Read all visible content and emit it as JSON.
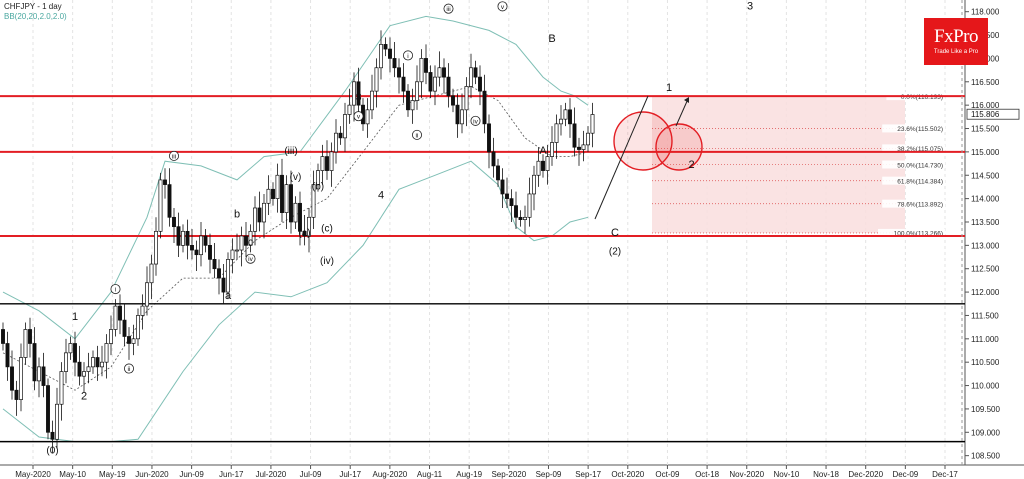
{
  "header": {
    "symbol": "CHFJPY - 1 day",
    "indicator": "BB(20,20,2.0,2.0)"
  },
  "logo": {
    "name": "FxPro",
    "tagline": "Trade Like a Pro"
  },
  "colors": {
    "level_line": "#e31e24",
    "support_line": "#000000",
    "bollinger": "#7fbfb5",
    "moving_average": "#555555",
    "fib_zone_fill": "#f9dede",
    "brand": "#e5171a"
  },
  "chart_data": {
    "type": "candlestick",
    "title": "CHFJPY - 1 day",
    "x_labels": [
      "May-2020",
      "May-10",
      "May-19",
      "Jun-2020",
      "Jun-09",
      "Jun-17",
      "Jul-2020",
      "Jul-09",
      "Jul-17",
      "Aug-2020",
      "Aug-11",
      "Aug-19",
      "Sep-2020",
      "Sep-09",
      "Sep-17",
      "Oct-2020",
      "Oct-09",
      "Oct-18",
      "Nov-2020",
      "Nov-10",
      "Nov-18",
      "Dec-2020",
      "Dec-09",
      "Dec-17"
    ],
    "y_ticks": [
      "108.500",
      "109.000",
      "109.500",
      "110.000",
      "110.500",
      "111.000",
      "111.500",
      "112.000",
      "112.500",
      "113.000",
      "113.500",
      "114.000",
      "114.500",
      "115.000",
      "115.500",
      "116.000",
      "116.500",
      "117.000",
      "117.500",
      "118.000"
    ],
    "ylim": [
      108.3,
      118.25
    ],
    "current_price": "115.806",
    "close_series": [
      110.9,
      110.4,
      109.9,
      109.7,
      110.6,
      111.2,
      110.9,
      110.1,
      110.4,
      110.0,
      109.0,
      108.85,
      109.6,
      110.3,
      110.7,
      110.9,
      110.5,
      110.2,
      110.3,
      110.4,
      110.6,
      110.4,
      110.5,
      110.9,
      111.2,
      111.7,
      111.4,
      111.05,
      110.9,
      111.0,
      111.5,
      111.7,
      112.2,
      112.6,
      113.3,
      114.4,
      114.3,
      113.6,
      113.4,
      113.0,
      113.3,
      113.0,
      112.9,
      112.8,
      113.2,
      113.0,
      112.7,
      112.5,
      112.3,
      112.0,
      112.7,
      112.9,
      112.9,
      113.2,
      113.0,
      113.3,
      113.8,
      113.5,
      113.9,
      114.2,
      114.0,
      114.5,
      113.7,
      114.3,
      113.5,
      113.9,
      113.3,
      113.2,
      113.6,
      114.3,
      114.6,
      114.9,
      114.6,
      115.0,
      115.4,
      115.3,
      115.8,
      116.0,
      116.5,
      116.0,
      115.6,
      115.9,
      116.3,
      116.8,
      117.3,
      117.2,
      117.0,
      116.8,
      116.6,
      116.3,
      115.9,
      116.1,
      116.5,
      117.0,
      116.7,
      116.3,
      116.6,
      116.8,
      116.6,
      116.2,
      116.0,
      115.6,
      115.9,
      116.4,
      116.8,
      116.6,
      116.3,
      115.6,
      115.0,
      114.7,
      114.4,
      114.1,
      114.0,
      113.85,
      113.6,
      113.55,
      113.6,
      114.1,
      114.5,
      114.8,
      114.6,
      114.9,
      115.2,
      115.6,
      115.7,
      115.9,
      115.6,
      115.1,
      115.05,
      115.15,
      115.4,
      115.8
    ],
    "bollinger_upper": [
      [
        0,
        112.0
      ],
      [
        8,
        111.6
      ],
      [
        16,
        111.0
      ],
      [
        24,
        112.0
      ],
      [
        32,
        113.6
      ],
      [
        36,
        114.8
      ],
      [
        44,
        114.7
      ],
      [
        52,
        114.4
      ],
      [
        58,
        114.9
      ],
      [
        66,
        115.0
      ],
      [
        76,
        116.3
      ],
      [
        86,
        117.7
      ],
      [
        94,
        117.9
      ],
      [
        100,
        117.8
      ],
      [
        108,
        117.6
      ],
      [
        114,
        117.3
      ],
      [
        120,
        116.6
      ],
      [
        124,
        116.3
      ],
      [
        127,
        116.2
      ],
      [
        130,
        116.0
      ]
    ],
    "bollinger_lower": [
      [
        0,
        109.5
      ],
      [
        8,
        108.9
      ],
      [
        16,
        108.8
      ],
      [
        24,
        108.8
      ],
      [
        30,
        108.85
      ],
      [
        40,
        110.3
      ],
      [
        48,
        111.3
      ],
      [
        56,
        112.0
      ],
      [
        64,
        111.9
      ],
      [
        72,
        112.2
      ],
      [
        80,
        113.0
      ],
      [
        88,
        114.2
      ],
      [
        96,
        114.5
      ],
      [
        104,
        114.8
      ],
      [
        110,
        114.3
      ],
      [
        114,
        113.4
      ],
      [
        118,
        113.1
      ],
      [
        122,
        113.2
      ],
      [
        126,
        113.5
      ],
      [
        130,
        113.6
      ]
    ],
    "moving_average": [
      [
        0,
        110.7
      ],
      [
        8,
        110.3
      ],
      [
        16,
        109.9
      ],
      [
        24,
        110.4
      ],
      [
        32,
        111.6
      ],
      [
        40,
        112.3
      ],
      [
        48,
        112.3
      ],
      [
        56,
        113.1
      ],
      [
        64,
        113.6
      ],
      [
        72,
        114.0
      ],
      [
        80,
        115.0
      ],
      [
        88,
        116.0
      ],
      [
        96,
        116.2
      ],
      [
        104,
        116.4
      ],
      [
        110,
        116.1
      ],
      [
        116,
        115.3
      ],
      [
        122,
        114.9
      ],
      [
        126,
        114.9
      ],
      [
        130,
        115.0
      ]
    ],
    "horizontal_levels": [
      {
        "price": 116.193,
        "color": "red"
      },
      {
        "price": 115.0,
        "color": "red"
      },
      {
        "price": 113.2,
        "color": "red"
      },
      {
        "price": 111.75,
        "color": "black"
      },
      {
        "price": 108.8,
        "color": "black"
      }
    ],
    "fibonacci": [
      {
        "label": "0.0%(116.193)",
        "price": 116.193
      },
      {
        "label": "23.6%(115.502)",
        "price": 115.502
      },
      {
        "label": "38.2%(115.075)",
        "price": 115.075
      },
      {
        "label": "50.0%(114.730)",
        "price": 114.73
      },
      {
        "label": "61.8%(114.384)",
        "price": 114.384
      },
      {
        "label": "78.6%(113.892)",
        "price": 113.892
      },
      {
        "label": "100.0%(113.266)",
        "price": 113.266
      }
    ],
    "wave_labels": [
      {
        "text": "(0)",
        "i": 11,
        "price": 108.55
      },
      {
        "text": "1",
        "i": 16,
        "price": 111.4
      },
      {
        "text": "2",
        "i": 18,
        "price": 109.7
      },
      {
        "text": "i",
        "i": 25,
        "price": 112.0
      },
      {
        "text": "ii",
        "i": 28,
        "price": 110.3
      },
      {
        "text": "iii",
        "i": 38,
        "price": 114.85
      },
      {
        "text": "iv",
        "i": 55,
        "price": 112.65
      },
      {
        "text": "a",
        "i": 50,
        "price": 111.85
      },
      {
        "text": "b",
        "i": 52,
        "price": 113.6
      },
      {
        "text": "c",
        "i": 55,
        "price": 113.0
      },
      {
        "text": "(iii)",
        "i": 64,
        "price": 114.95
      },
      {
        "text": "(v)",
        "i": 65,
        "price": 114.4
      },
      {
        "text": "(b)",
        "i": 70,
        "price": 114.2
      },
      {
        "text": "(a)",
        "i": 67,
        "price": 113.2
      },
      {
        "text": "(c)",
        "i": 72,
        "price": 113.3
      },
      {
        "text": "(iv)",
        "i": 72,
        "price": 112.6
      },
      {
        "text": "3",
        "i": 79,
        "price": 116.1
      },
      {
        "text": "v",
        "i": 79,
        "price": 115.7
      },
      {
        "text": "4",
        "i": 84,
        "price": 114.0
      },
      {
        "text": "i",
        "i": 90,
        "price": 117.0
      },
      {
        "text": "ii",
        "i": 92,
        "price": 115.3
      },
      {
        "text": "iii",
        "i": 99,
        "price": 118.0
      },
      {
        "text": "iv",
        "i": 105,
        "price": 115.6
      },
      {
        "text": "5",
        "i": 111,
        "price": 118.5
      },
      {
        "text": "v",
        "i": 111,
        "price": 118.05
      },
      {
        "text": "B",
        "i": 122,
        "price": 117.35
      },
      {
        "text": "A",
        "i": 120,
        "price": 114.95
      },
      {
        "text": "C",
        "i": 136,
        "price": 113.2
      },
      {
        "text": "(2)",
        "i": 136,
        "price": 112.8
      },
      {
        "text": "1",
        "i": 148,
        "price": 116.3
      },
      {
        "text": "2",
        "i": 153,
        "price": 114.65
      },
      {
        "text": "3",
        "i": 166,
        "price": 118.05
      }
    ]
  }
}
